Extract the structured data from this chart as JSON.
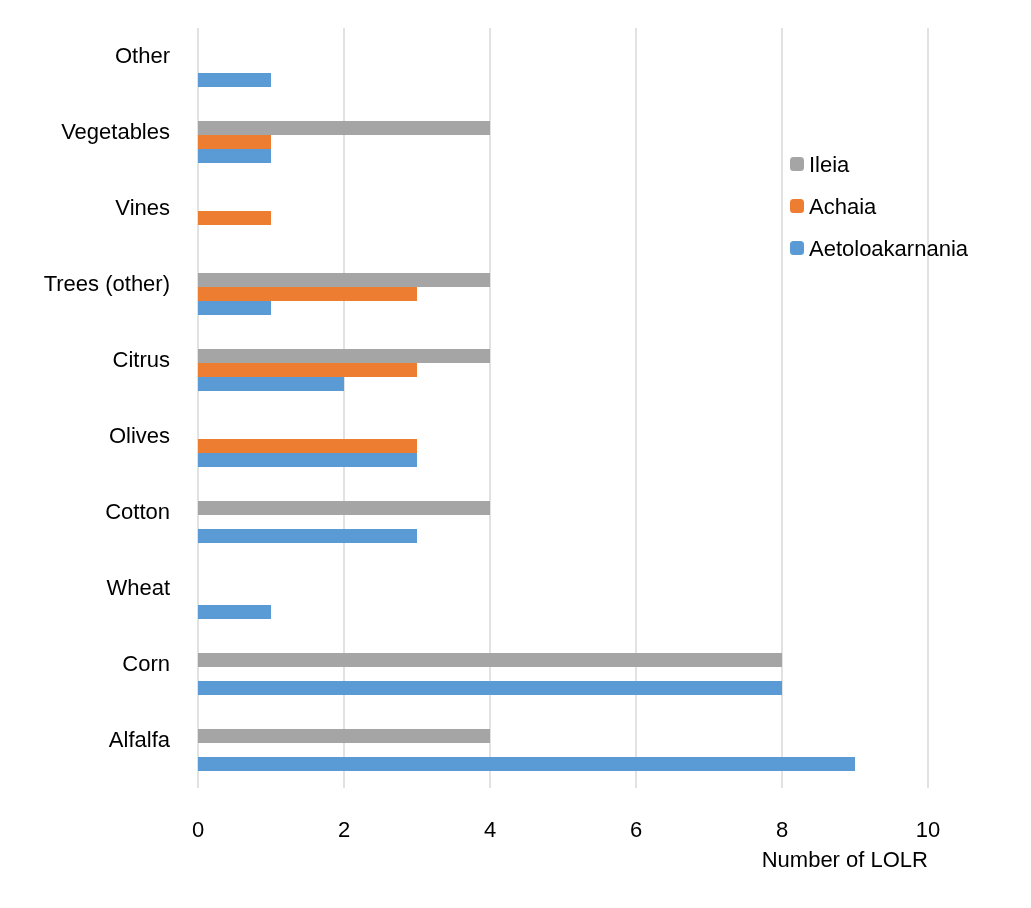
{
  "chart_data": {
    "type": "bar",
    "orientation": "horizontal",
    "xlabel": "Number of LOLR",
    "categories": [
      "Other",
      "Vegetables",
      "Vines",
      "Trees (other)",
      "Citrus",
      "Olives",
      "Cotton",
      "Wheat",
      "Corn",
      "Alfalfa"
    ],
    "series": [
      {
        "name": "Ileia",
        "color": "#a5a5a5",
        "values": [
          0,
          4,
          0,
          4,
          4,
          0,
          4,
          0,
          8,
          4
        ]
      },
      {
        "name": "Achaia",
        "color": "#ed7d31",
        "values": [
          0,
          1,
          1,
          3,
          3,
          3,
          0,
          0,
          0,
          0
        ]
      },
      {
        "name": "Aetoloakarnania",
        "color": "#5b9bd5",
        "values": [
          1,
          1,
          0,
          1,
          2,
          3,
          3,
          1,
          8,
          9
        ]
      }
    ],
    "xlim": [
      0,
      10
    ],
    "xticks": [
      0,
      2,
      4,
      6,
      8,
      10
    ],
    "grid": "x",
    "legend": "right"
  }
}
